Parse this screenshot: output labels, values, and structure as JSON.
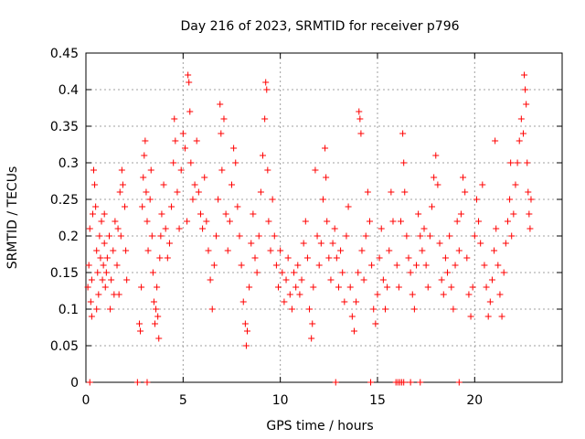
{
  "chart_data": {
    "type": "scatter",
    "title": "Day 216 of 2023, SRMTID for receiver p796",
    "xlabel": "GPS time / hours",
    "ylabel": "SRMTID / TECUs",
    "xlim": [
      0,
      24.5
    ],
    "ylim": [
      0,
      0.45
    ],
    "xticks": [
      "0",
      "5",
      "10",
      "15",
      "20"
    ],
    "xtick_values": [
      0,
      5,
      10,
      15,
      20
    ],
    "yticks": [
      "0",
      "0.05",
      "0.1",
      "0.15",
      "0.2",
      "0.25",
      "0.3",
      "0.35",
      "0.4",
      "0.45"
    ],
    "ytick_values": [
      0,
      0.05,
      0.1,
      0.15,
      0.2,
      0.25,
      0.3,
      0.35,
      0.4,
      0.45
    ],
    "grid": true,
    "marker": "+",
    "color": "#ff0000",
    "series": [
      {
        "name": "SRMTID",
        "points": [
          [
            0.1,
            0.13
          ],
          [
            0.15,
            0.16
          ],
          [
            0.2,
            0.21
          ],
          [
            0.25,
            0.11
          ],
          [
            0.3,
            0.14
          ],
          [
            0.35,
            0.23
          ],
          [
            0.4,
            0.29
          ],
          [
            0.45,
            0.27
          ],
          [
            0.5,
            0.24
          ],
          [
            0.55,
            0.18
          ],
          [
            0.6,
            0.15
          ],
          [
            0.65,
            0.12
          ],
          [
            0.7,
            0.2
          ],
          [
            0.75,
            0.17
          ],
          [
            0.8,
            0.22
          ],
          [
            0.85,
            0.14
          ],
          [
            0.9,
            0.16
          ],
          [
            0.95,
            0.19
          ],
          [
            1.0,
            0.13
          ],
          [
            1.05,
            0.15
          ],
          [
            1.1,
            0.17
          ],
          [
            1.2,
            0.2
          ],
          [
            1.3,
            0.14
          ],
          [
            1.4,
            0.18
          ],
          [
            1.5,
            0.22
          ],
          [
            1.6,
            0.16
          ],
          [
            1.7,
            0.12
          ],
          [
            1.8,
            0.2
          ],
          [
            1.9,
            0.27
          ],
          [
            2.0,
            0.24
          ],
          [
            1.75,
            0.26
          ],
          [
            1.85,
            0.29
          ],
          [
            2.05,
            0.18
          ],
          [
            2.1,
            0.14
          ],
          [
            1.25,
            0.1
          ],
          [
            0.55,
            0.1
          ],
          [
            1.45,
            0.12
          ],
          [
            1.65,
            0.21
          ],
          [
            0.95,
            0.23
          ],
          [
            0.3,
            0.09
          ],
          [
            2.75,
            0.08
          ],
          [
            2.8,
            0.07
          ],
          [
            2.85,
            0.13
          ],
          [
            2.9,
            0.24
          ],
          [
            2.95,
            0.28
          ],
          [
            3.0,
            0.31
          ],
          [
            3.05,
            0.33
          ],
          [
            3.1,
            0.26
          ],
          [
            3.15,
            0.22
          ],
          [
            3.2,
            0.18
          ],
          [
            3.3,
            0.25
          ],
          [
            3.35,
            0.29
          ],
          [
            3.4,
            0.2
          ],
          [
            3.45,
            0.15
          ],
          [
            3.5,
            0.11
          ],
          [
            3.55,
            0.08
          ],
          [
            3.6,
            0.1
          ],
          [
            3.65,
            0.13
          ],
          [
            3.7,
            0.09
          ],
          [
            3.75,
            0.06
          ],
          [
            3.8,
            0.17
          ],
          [
            3.85,
            0.2
          ],
          [
            3.9,
            0.23
          ],
          [
            4.0,
            0.27
          ],
          [
            4.1,
            0.21
          ],
          [
            4.2,
            0.17
          ],
          [
            4.3,
            0.19
          ],
          [
            4.4,
            0.24
          ],
          [
            4.5,
            0.3
          ],
          [
            4.55,
            0.36
          ],
          [
            4.6,
            0.33
          ],
          [
            4.7,
            0.26
          ],
          [
            4.8,
            0.21
          ],
          [
            4.9,
            0.29
          ],
          [
            5.0,
            0.34
          ],
          [
            5.1,
            0.32
          ],
          [
            5.2,
            0.22
          ],
          [
            5.25,
            0.42
          ],
          [
            5.3,
            0.41
          ],
          [
            5.35,
            0.37
          ],
          [
            5.4,
            0.3
          ],
          [
            5.5,
            0.25
          ],
          [
            5.6,
            0.27
          ],
          [
            5.7,
            0.33
          ],
          [
            5.8,
            0.26
          ],
          [
            5.9,
            0.23
          ],
          [
            6.0,
            0.21
          ],
          [
            6.1,
            0.28
          ],
          [
            6.2,
            0.22
          ],
          [
            6.3,
            0.18
          ],
          [
            6.4,
            0.14
          ],
          [
            6.5,
            0.1
          ],
          [
            6.6,
            0.16
          ],
          [
            6.7,
            0.2
          ],
          [
            6.8,
            0.25
          ],
          [
            6.9,
            0.38
          ],
          [
            6.95,
            0.34
          ],
          [
            7.0,
            0.29
          ],
          [
            7.1,
            0.36
          ],
          [
            7.2,
            0.23
          ],
          [
            7.3,
            0.18
          ],
          [
            7.4,
            0.22
          ],
          [
            7.5,
            0.27
          ],
          [
            7.6,
            0.32
          ],
          [
            7.7,
            0.3
          ],
          [
            7.8,
            0.24
          ],
          [
            7.9,
            0.2
          ],
          [
            8.0,
            0.16
          ],
          [
            8.1,
            0.11
          ],
          [
            8.2,
            0.08
          ],
          [
            8.25,
            0.05
          ],
          [
            8.3,
            0.07
          ],
          [
            8.4,
            0.13
          ],
          [
            8.5,
            0.19
          ],
          [
            8.6,
            0.23
          ],
          [
            8.7,
            0.17
          ],
          [
            8.8,
            0.15
          ],
          [
            8.9,
            0.2
          ],
          [
            9.0,
            0.26
          ],
          [
            9.1,
            0.31
          ],
          [
            9.2,
            0.36
          ],
          [
            9.25,
            0.41
          ],
          [
            9.3,
            0.4
          ],
          [
            9.35,
            0.29
          ],
          [
            9.4,
            0.22
          ],
          [
            9.5,
            0.18
          ],
          [
            9.6,
            0.25
          ],
          [
            9.7,
            0.2
          ],
          [
            9.8,
            0.16
          ],
          [
            9.9,
            0.13
          ],
          [
            10.0,
            0.18
          ],
          [
            10.1,
            0.15
          ],
          [
            10.2,
            0.11
          ],
          [
            10.3,
            0.14
          ],
          [
            10.4,
            0.17
          ],
          [
            10.5,
            0.12
          ],
          [
            10.6,
            0.1
          ],
          [
            10.7,
            0.15
          ],
          [
            10.8,
            0.13
          ],
          [
            10.9,
            0.16
          ],
          [
            11.0,
            0.12
          ],
          [
            11.1,
            0.14
          ],
          [
            11.2,
            0.19
          ],
          [
            11.3,
            0.22
          ],
          [
            11.4,
            0.17
          ],
          [
            11.5,
            0.1
          ],
          [
            11.6,
            0.06
          ],
          [
            11.65,
            0.08
          ],
          [
            11.7,
            0.13
          ],
          [
            11.8,
            0.29
          ],
          [
            11.9,
            0.2
          ],
          [
            12.0,
            0.16
          ],
          [
            12.1,
            0.19
          ],
          [
            12.2,
            0.25
          ],
          [
            12.3,
            0.32
          ],
          [
            12.35,
            0.28
          ],
          [
            12.4,
            0.22
          ],
          [
            12.5,
            0.17
          ],
          [
            12.6,
            0.14
          ],
          [
            12.7,
            0.19
          ],
          [
            12.8,
            0.21
          ],
          [
            12.9,
            0.17
          ],
          [
            13.0,
            0.13
          ],
          [
            13.1,
            0.18
          ],
          [
            13.2,
            0.15
          ],
          [
            13.3,
            0.11
          ],
          [
            13.4,
            0.2
          ],
          [
            13.5,
            0.24
          ],
          [
            13.6,
            0.13
          ],
          [
            13.7,
            0.09
          ],
          [
            13.8,
            0.07
          ],
          [
            13.9,
            0.11
          ],
          [
            14.0,
            0.15
          ],
          [
            14.05,
            0.37
          ],
          [
            14.1,
            0.36
          ],
          [
            14.15,
            0.34
          ],
          [
            14.2,
            0.18
          ],
          [
            14.3,
            0.14
          ],
          [
            14.4,
            0.2
          ],
          [
            14.5,
            0.26
          ],
          [
            14.6,
            0.22
          ],
          [
            14.7,
            0.16
          ],
          [
            14.8,
            0.1
          ],
          [
            14.9,
            0.08
          ],
          [
            15.0,
            0.12
          ],
          [
            15.1,
            0.17
          ],
          [
            15.2,
            0.21
          ],
          [
            15.3,
            0.14
          ],
          [
            15.4,
            0.1
          ],
          [
            15.5,
            0.13
          ],
          [
            15.6,
            0.18
          ],
          [
            15.7,
            0.26
          ],
          [
            15.8,
            0.22
          ],
          [
            16.0,
            0.16
          ],
          [
            16.1,
            0.13
          ],
          [
            16.2,
            0.22
          ],
          [
            16.3,
            0.34
          ],
          [
            16.35,
            0.3
          ],
          [
            16.4,
            0.26
          ],
          [
            16.5,
            0.2
          ],
          [
            16.6,
            0.17
          ],
          [
            16.7,
            0.15
          ],
          [
            16.8,
            0.12
          ],
          [
            16.9,
            0.1
          ],
          [
            17.0,
            0.16
          ],
          [
            17.1,
            0.23
          ],
          [
            17.2,
            0.2
          ],
          [
            17.3,
            0.18
          ],
          [
            17.4,
            0.21
          ],
          [
            17.5,
            0.16
          ],
          [
            17.6,
            0.13
          ],
          [
            17.7,
            0.2
          ],
          [
            17.8,
            0.24
          ],
          [
            17.9,
            0.28
          ],
          [
            18.0,
            0.31
          ],
          [
            18.1,
            0.27
          ],
          [
            18.2,
            0.19
          ],
          [
            18.3,
            0.14
          ],
          [
            18.4,
            0.12
          ],
          [
            18.5,
            0.17
          ],
          [
            18.6,
            0.15
          ],
          [
            18.7,
            0.2
          ],
          [
            18.8,
            0.13
          ],
          [
            18.9,
            0.1
          ],
          [
            19.0,
            0.16
          ],
          [
            19.1,
            0.22
          ],
          [
            19.2,
            0.18
          ],
          [
            19.3,
            0.23
          ],
          [
            19.4,
            0.28
          ],
          [
            19.5,
            0.26
          ],
          [
            19.6,
            0.17
          ],
          [
            19.7,
            0.12
          ],
          [
            19.8,
            0.09
          ],
          [
            19.9,
            0.13
          ],
          [
            20.0,
            0.2
          ],
          [
            20.1,
            0.25
          ],
          [
            20.2,
            0.22
          ],
          [
            20.3,
            0.19
          ],
          [
            20.4,
            0.27
          ],
          [
            20.5,
            0.16
          ],
          [
            20.6,
            0.13
          ],
          [
            20.7,
            0.09
          ],
          [
            20.8,
            0.11
          ],
          [
            20.9,
            0.14
          ],
          [
            21.0,
            0.18
          ],
          [
            21.1,
            0.21
          ],
          [
            21.2,
            0.16
          ],
          [
            21.3,
            0.12
          ],
          [
            21.4,
            0.09
          ],
          [
            21.5,
            0.15
          ],
          [
            21.6,
            0.19
          ],
          [
            21.7,
            0.22
          ],
          [
            21.8,
            0.25
          ],
          [
            21.9,
            0.2
          ],
          [
            22.0,
            0.23
          ],
          [
            22.1,
            0.27
          ],
          [
            22.2,
            0.3
          ],
          [
            22.3,
            0.33
          ],
          [
            22.4,
            0.36
          ],
          [
            22.5,
            0.34
          ],
          [
            22.55,
            0.42
          ],
          [
            22.6,
            0.4
          ],
          [
            22.65,
            0.38
          ],
          [
            22.7,
            0.3
          ],
          [
            22.75,
            0.26
          ],
          [
            22.8,
            0.23
          ],
          [
            22.85,
            0.21
          ],
          [
            22.9,
            0.25
          ],
          [
            21.05,
            0.33
          ],
          [
            21.85,
            0.3
          ],
          [
            0.2,
            0.0
          ],
          [
            2.65,
            0.0
          ],
          [
            3.15,
            0.0
          ],
          [
            12.85,
            0.0
          ],
          [
            14.65,
            0.0
          ],
          [
            15.95,
            0.0
          ],
          [
            16.05,
            0.0
          ],
          [
            16.15,
            0.0
          ],
          [
            16.25,
            0.0
          ],
          [
            16.35,
            0.0
          ],
          [
            16.7,
            0.0
          ],
          [
            17.2,
            0.0
          ],
          [
            19.2,
            0.0
          ]
        ]
      }
    ]
  }
}
